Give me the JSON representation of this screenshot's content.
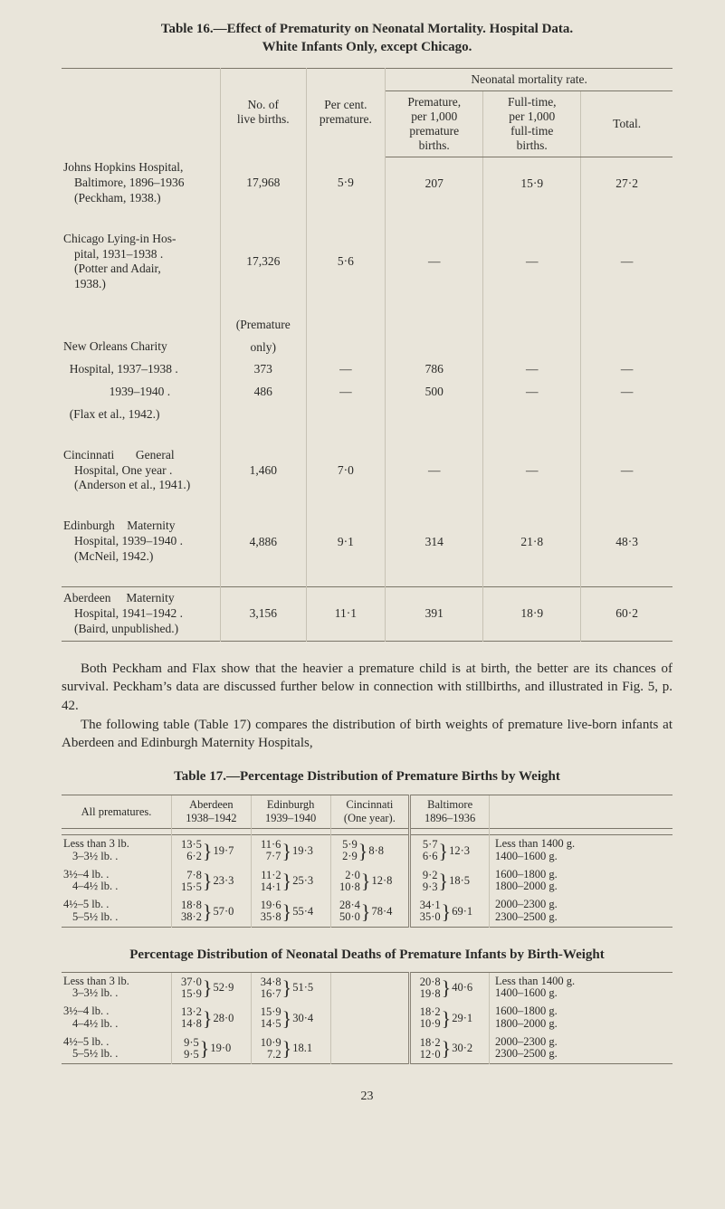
{
  "colors": {
    "page_bg": "#e9e5da",
    "text": "#2a2a28",
    "rule": "#7a7568",
    "col_sep": "#c7c2b4"
  },
  "typography": {
    "body_family": "Times New Roman, Georgia, serif",
    "body_size_pt": 11,
    "caption_size_pt": 11,
    "caption_weight": "bold",
    "table_size_pt": 10
  },
  "table16": {
    "caption_line1": "Table 16.—Effect of Prematurity on Neonatal Mortality.  Hospital Data.",
    "caption_line2": "White Infants Only, except Chicago.",
    "headers": {
      "live_births": "No. of\nlive births.",
      "pct_premature": "Per cent.\npremature.",
      "nmr_group": "Neonatal mortality rate.",
      "premature": "Premature,\nper 1,000\npremature\nbirths.",
      "fulltime": "Full-time,\nper 1,000\nfull-time\nbirths.",
      "total": "Total."
    },
    "rows": [
      {
        "name": "Johns Hopkins Hospital,",
        "subs": [
          "Baltimore, 1896–1936",
          "(Peckham, 1938.)"
        ],
        "vals": [
          "17,968",
          "5·9",
          "207",
          "15·9",
          "27·2"
        ]
      },
      {
        "name": "Chicago Lying-in Hos-",
        "subs": [
          "pital, 1931–1938       .",
          "(Potter and Adair,",
          "1938.)"
        ],
        "vals": [
          "17,326",
          "5·6",
          "—",
          "—",
          "—"
        ]
      },
      {
        "name": "",
        "subs": [],
        "vals": [
          "(Premature",
          "",
          "",
          "",
          ""
        ],
        "raw": true
      },
      {
        "name": "New Orleans Charity",
        "subs": [],
        "vals": [
          "only)",
          "",
          "",
          "",
          ""
        ],
        "raw": true
      },
      {
        "name": "  Hospital, 1937–1938 .",
        "subs": [],
        "vals": [
          "373",
          "—",
          "786",
          "—",
          "—"
        ]
      },
      {
        "name": "               1939–1940 .",
        "subs": [],
        "vals": [
          "486",
          "—",
          "500",
          "—",
          "—"
        ]
      },
      {
        "name": "  (Flax et al., 1942.)",
        "subs": [],
        "vals": [
          "",
          "",
          "",
          "",
          ""
        ]
      },
      {
        "name": "Cincinnati       General",
        "subs": [
          "Hospital, One year   .",
          "(Anderson et al., 1941.)"
        ],
        "vals": [
          "1,460",
          "7·0",
          "—",
          "—",
          "—"
        ]
      },
      {
        "name": "Edinburgh    Maternity",
        "subs": [
          "Hospital, 1939–1940 .",
          "(McNeil, 1942.)"
        ],
        "vals": [
          "4,886",
          "9·1",
          "314",
          "21·8",
          "48·3"
        ]
      },
      {
        "name": "Aberdeen     Maternity",
        "subs": [
          "Hospital, 1941–1942 .",
          "(Baird, unpublished.)"
        ],
        "vals": [
          "3,156",
          "11·1",
          "391",
          "18·9",
          "60·2"
        ]
      }
    ]
  },
  "paragraphs": {
    "p1": "Both Peckham and Flax show that the heavier a premature child is at birth, the better are its chances of survival.  Peckham’s data are discussed further below in connection with stillbirths, and illustrated in Fig. 5, p. 42.",
    "p2": "The following table (Table 17) compares the distribution of birth weights of premature live-born infants at Aberdeen and Edinburgh Maternity Hospitals,"
  },
  "table17": {
    "caption": "Table 17.—Percentage Distribution of Premature Births by Weight",
    "headers": {
      "all": "All prematures.",
      "aberdeen": "Aberdeen\n1938–1942",
      "edinburgh": "Edinburgh\n1939–1940",
      "cincinnati": "Cincinnati\n(One year).",
      "baltimore": "Baltimore\n1896–1936"
    },
    "rows": [
      {
        "w": [
          "Less than 3 lb.",
          "3–3½ lb.       ."
        ],
        "ab": [
          "13·5",
          "6·2",
          "19·7"
        ],
        "ed": [
          "11·6",
          "7·7",
          "19·3"
        ],
        "ci": [
          "5·9",
          "2·9",
          "8·8"
        ],
        "ba": [
          "5·7",
          "6·6",
          "12·3"
        ],
        "g": [
          "Less than 1400 g.",
          "1400–1600 g."
        ]
      },
      {
        "w": [
          "3½–4 lb.       .",
          "4–4½ lb.       ."
        ],
        "ab": [
          "7·8",
          "15·5",
          "23·3"
        ],
        "ed": [
          "11·2",
          "14·1",
          "25·3"
        ],
        "ci": [
          "2·0",
          "10·8",
          "12·8"
        ],
        "ba": [
          "9·2",
          "9·3",
          "18·5"
        ],
        "g": [
          "1600–1800 g.",
          "1800–2000 g."
        ]
      },
      {
        "w": [
          "4½–5 lb.       .",
          "5–5½ lb.       ."
        ],
        "ab": [
          "18·8",
          "38·2",
          "57·0"
        ],
        "ed": [
          "19·6",
          "35·8",
          "55·4"
        ],
        "ci": [
          "28·4",
          "50·0",
          "78·4"
        ],
        "ba": [
          "34·1",
          "35·0",
          "69·1"
        ],
        "g": [
          "2000–2300 g.",
          "2300–2500 g."
        ]
      }
    ]
  },
  "table18": {
    "caption": "Percentage Distribution of Neonatal Deaths of Premature Infants by Birth-Weight",
    "rows": [
      {
        "w": [
          "Less than 3 lb.",
          "3–3½ lb.       ."
        ],
        "ab": [
          "37·0",
          "15·9",
          "52·9"
        ],
        "ed": [
          "34·8",
          "16·7",
          "51·5"
        ],
        "ba": [
          "20·8",
          "19·8",
          "40·6"
        ],
        "g": [
          "Less than 1400 g.",
          "1400–1600 g."
        ]
      },
      {
        "w": [
          "3½–4 lb.       .",
          "4–4½ lb.       ."
        ],
        "ab": [
          "13·2",
          "14·8",
          "28·0"
        ],
        "ed": [
          "15·9",
          "14·5",
          "30·4"
        ],
        "ba": [
          "18·2",
          "10·9",
          "29·1"
        ],
        "g": [
          "1600–1800 g.",
          "1800–2000 g."
        ]
      },
      {
        "w": [
          "4½–5 lb.       .",
          "5–5½ lb.       ."
        ],
        "ab": [
          "9·5",
          "9·5",
          "19·0"
        ],
        "ed": [
          "10·9",
          "7.2",
          "18.1"
        ],
        "ba": [
          "18·2",
          "12·0",
          "30·2"
        ],
        "g": [
          "2000–2300 g.",
          "2300–2500 g."
        ]
      }
    ]
  },
  "page_number": "23"
}
